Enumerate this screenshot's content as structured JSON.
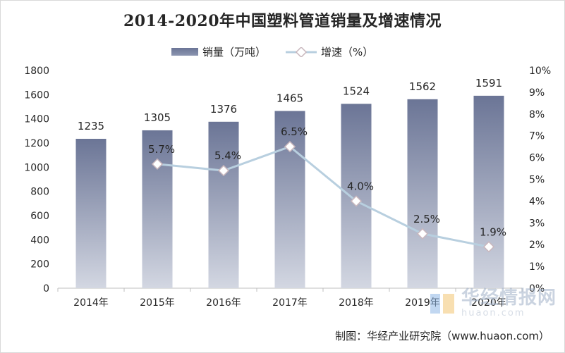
{
  "chart_data": {
    "type": "bar",
    "title": "2014-2020年中国塑料管道销量及增速情况",
    "categories": [
      "2014年",
      "2015年",
      "2016年",
      "2017年",
      "2018年",
      "2019年",
      "2020年"
    ],
    "series": [
      {
        "name": "销量（万吨）",
        "type": "bar",
        "axis": "left",
        "values": [
          1235,
          1305,
          1376,
          1465,
          1524,
          1562,
          1591
        ],
        "labels": [
          "1235",
          "1305",
          "1376",
          "1465",
          "1524",
          "1562",
          "1591"
        ]
      },
      {
        "name": "增速（%）",
        "type": "line",
        "axis": "right",
        "values": [
          null,
          5.7,
          5.4,
          6.5,
          4.0,
          2.5,
          1.9
        ],
        "labels": [
          null,
          "5.7%",
          "5.4%",
          "6.5%",
          "4.0%",
          "2.5%",
          "1.9%"
        ]
      }
    ],
    "y_left": {
      "min": 0,
      "max": 1800,
      "step": 200,
      "ticks": [
        "0",
        "200",
        "400",
        "600",
        "800",
        "1000",
        "1200",
        "1400",
        "1600",
        "1800"
      ]
    },
    "y_right": {
      "min": 0,
      "max": 10,
      "step": 1,
      "ticks": [
        "0%",
        "1%",
        "2%",
        "3%",
        "4%",
        "5%",
        "6%",
        "7%",
        "8%",
        "9%",
        "10%"
      ]
    },
    "legend_position": "top",
    "colors": {
      "bar_top": "#6b7596",
      "bar_bottom": "#d3d7e2",
      "line": "#b8cfdf",
      "marker_stroke": "#c9b7bd"
    }
  },
  "legend": {
    "bar_label": "销量（万吨）",
    "line_label": "增速（%）"
  },
  "credit": "制图：华经产业研究院（www.huaon.com）",
  "watermark": {
    "cn": "华经情报网",
    "en": "huaon.com"
  }
}
